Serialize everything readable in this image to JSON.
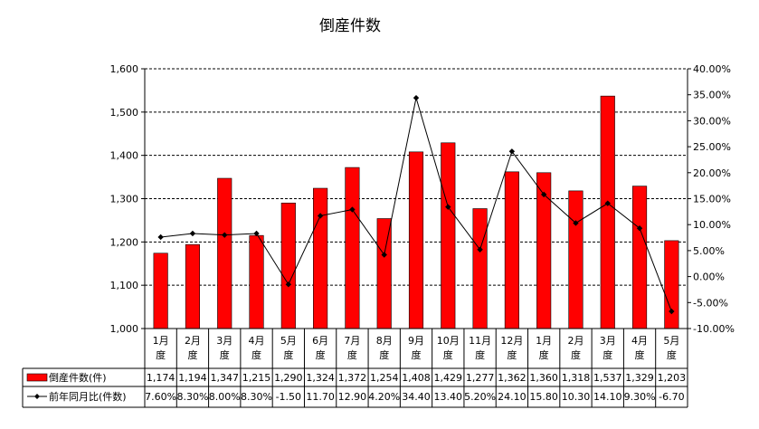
{
  "chart_data": {
    "type": "bar",
    "title": "倒産件数",
    "categories": [
      "1月度",
      "2月度",
      "3月度",
      "4月度",
      "5月度",
      "6月度",
      "7月度",
      "8月度",
      "9月度",
      "10月度",
      "11月度",
      "12月度",
      "1月度",
      "2月度",
      "3月度",
      "4月度",
      "5月度"
    ],
    "category_lines": [
      [
        "1月",
        "度"
      ],
      [
        "2月",
        "度"
      ],
      [
        "3月",
        "度"
      ],
      [
        "4月",
        "度"
      ],
      [
        "5月",
        "度"
      ],
      [
        "6月",
        "度"
      ],
      [
        "7月",
        "度"
      ],
      [
        "8月",
        "度"
      ],
      [
        "9月",
        "度"
      ],
      [
        "10月",
        "度"
      ],
      [
        "11月",
        "度"
      ],
      [
        "12月",
        "度"
      ],
      [
        "1月",
        "度"
      ],
      [
        "2月",
        "度"
      ],
      [
        "3月",
        "度"
      ],
      [
        "4月",
        "度"
      ],
      [
        "5月",
        "度"
      ]
    ],
    "series": [
      {
        "name": "倒産件数(件)",
        "type": "bar",
        "axis": "left",
        "color": "#ff0000",
        "values": [
          1174,
          1194,
          1347,
          1215,
          1290,
          1324,
          1372,
          1254,
          1408,
          1429,
          1277,
          1362,
          1360,
          1318,
          1537,
          1329,
          1203
        ],
        "table_labels": [
          "1,174",
          "1,194",
          "1,347",
          "1,215",
          "1,290",
          "1,324",
          "1,372",
          "1,254",
          "1,408",
          "1,429",
          "1,277",
          "1,362",
          "1,360",
          "1,318",
          "1,537",
          "1,329",
          "1,203"
        ]
      },
      {
        "name": "前年同月比(件数)",
        "type": "line",
        "axis": "right",
        "color": "#000000",
        "values": [
          7.6,
          8.3,
          8.0,
          8.3,
          -1.5,
          11.7,
          12.9,
          4.2,
          34.4,
          13.4,
          5.2,
          24.1,
          15.8,
          10.3,
          14.1,
          9.3,
          -6.7
        ],
        "table_labels": [
          "7.60%",
          "8.30%",
          "8.00%",
          "8.30%",
          "-1.50",
          "11.70",
          "12.90",
          "4.20%",
          "34.40",
          "13.40",
          "5.20%",
          "24.10",
          "15.80",
          "10.30",
          "14.10",
          "9.30%",
          "-6.70"
        ]
      }
    ],
    "y_left": {
      "range": [
        1000,
        1600
      ],
      "ticks": [
        1000,
        1100,
        1200,
        1300,
        1400,
        1500,
        1600
      ],
      "tick_labels": [
        "1,000",
        "1,100",
        "1,200",
        "1,300",
        "1,400",
        "1,500",
        "1,600"
      ]
    },
    "y_right": {
      "range": [
        -10,
        40
      ],
      "ticks": [
        -10,
        -5,
        0,
        5,
        10,
        15,
        20,
        25,
        30,
        35,
        40
      ],
      "tick_labels": [
        "-10.00%",
        "-5.00%",
        "0.00%",
        "5.00%",
        "10.00%",
        "15.00%",
        "20.00%",
        "25.00%",
        "30.00%",
        "35.00%",
        "40.00%"
      ]
    },
    "grid": true,
    "legend": "data-table"
  }
}
